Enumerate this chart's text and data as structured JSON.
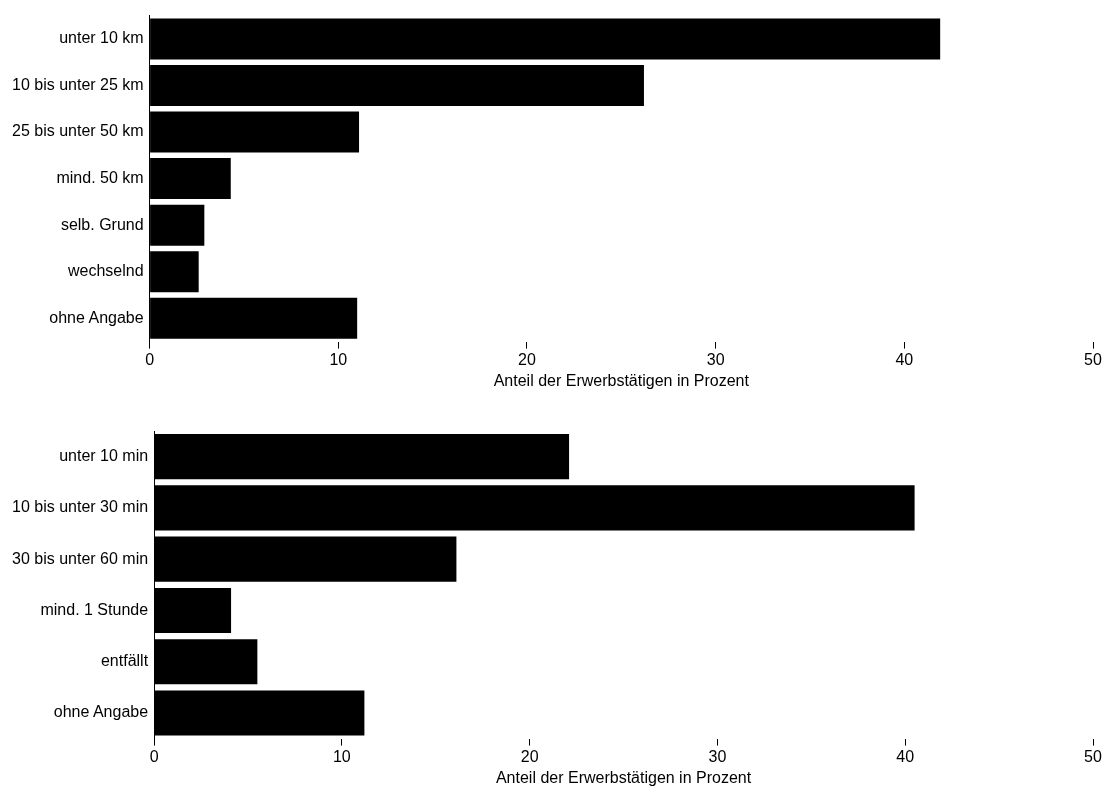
{
  "chart_data": [
    {
      "type": "bar",
      "orientation": "horizontal",
      "categories": [
        "unter 10 km",
        "10 bis unter 25 km",
        "25 bis unter 50 km",
        "mind. 50 km",
        "selb. Grund",
        "wechselnd",
        "ohne Angabe"
      ],
      "values": [
        41.9,
        26.2,
        11.1,
        4.3,
        2.9,
        2.6,
        11.0
      ],
      "color": "#000000",
      "xlabel": "Anteil der Erwerbstätigen in Prozent",
      "xlim": [
        0,
        50
      ],
      "xticks": [
        0,
        10,
        20,
        30,
        40,
        50
      ],
      "grid": false,
      "legend": false
    },
    {
      "type": "bar",
      "orientation": "horizontal",
      "categories": [
        "unter 10 min",
        "10 bis unter 30 min",
        "30 bis unter 60 min",
        "mind. 1 Stunde",
        "entfällt",
        "ohne Angabe"
      ],
      "values": [
        22.1,
        40.5,
        16.1,
        4.1,
        5.5,
        11.2
      ],
      "color": "#000000",
      "xlabel": "Anteil der Erwerbstätigen in Prozent",
      "xlim": [
        0,
        50
      ],
      "xticks": [
        0,
        10,
        20,
        30,
        40,
        50
      ],
      "grid": false,
      "legend": false
    }
  ]
}
